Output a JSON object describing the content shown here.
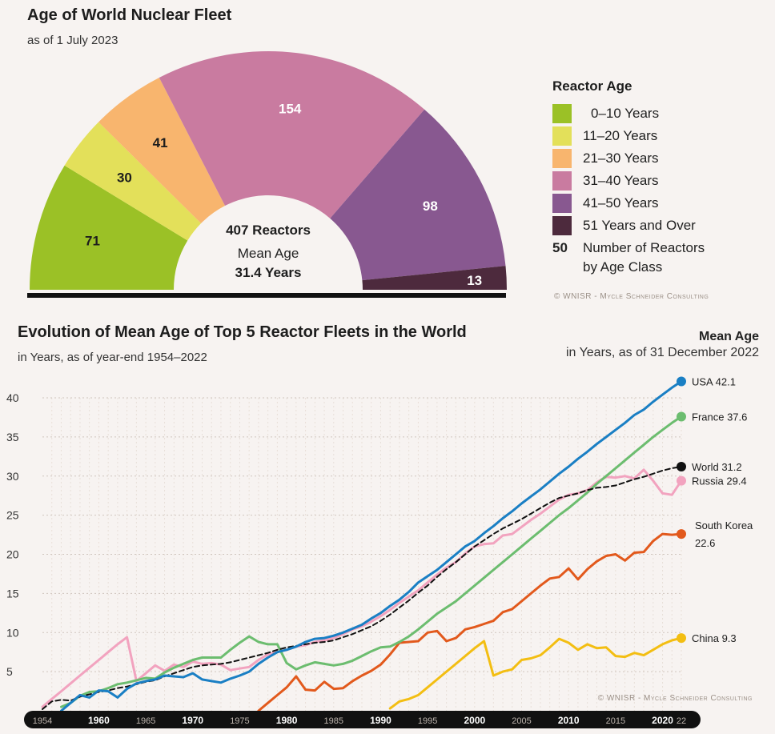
{
  "top": {
    "title": "Age of World Nuclear Fleet",
    "subtitle": "as of 1 July 2023",
    "center_line1": "407 Reactors",
    "center_line2": "Mean Age",
    "center_line3": "31.4 Years",
    "legend_title": "Reactor Age",
    "number_key": "50",
    "number_key_label_1": "Number of Reactors",
    "number_key_label_2": "by Age Class",
    "credit": "© WNISR - Mycle Schneider Consulting"
  },
  "bottom": {
    "title": "Evolution of Mean Age of Top 5 Reactor Fleets in the World",
    "subtitle": "in Years, as of year-end 1954–2022",
    "side_title": "Mean Age",
    "side_subtitle": "in Years, as of 31 December 2022",
    "credit": "© WNISR - Mycle Schneider Consulting"
  },
  "chart_data": [
    {
      "type": "pie",
      "subtype": "semicircle-donut",
      "title": "Age of World Nuclear Fleet",
      "categories": [
        "0–10 Years",
        "11–20 Years",
        "21–30 Years",
        "31–40 Years",
        "41–50 Years",
        "51 Years and Over"
      ],
      "values": [
        71,
        30,
        41,
        154,
        98,
        13
      ],
      "colors": [
        "#9bc126",
        "#e3e05a",
        "#f8b56e",
        "#c97ba0",
        "#885890",
        "#4d2a3d"
      ],
      "label_colors": [
        "#1d1d1d",
        "#1d1d1d",
        "#1d1d1d",
        "#ffffff",
        "#ffffff",
        "#ffffff"
      ],
      "total": 407
    },
    {
      "type": "line",
      "title": "Evolution of Mean Age of Top 5 Reactor Fleets in the World",
      "xlabel": "",
      "ylabel": "",
      "xlim": [
        1954,
        2022
      ],
      "ylim": [
        0,
        40
      ],
      "yticks": [
        5,
        10,
        15,
        20,
        25,
        30,
        35,
        40
      ],
      "xticks": [
        {
          "year": 1954,
          "label": "1954",
          "bold": false
        },
        {
          "year": 1960,
          "label": "1960",
          "bold": true
        },
        {
          "year": 1965,
          "label": "1965",
          "bold": false
        },
        {
          "year": 1970,
          "label": "1970",
          "bold": true
        },
        {
          "year": 1975,
          "label": "1975",
          "bold": false
        },
        {
          "year": 1980,
          "label": "1980",
          "bold": true
        },
        {
          "year": 1985,
          "label": "1985",
          "bold": false
        },
        {
          "year": 1990,
          "label": "1990",
          "bold": true
        },
        {
          "year": 1995,
          "label": "1995",
          "bold": false
        },
        {
          "year": 2000,
          "label": "2000",
          "bold": true
        },
        {
          "year": 2005,
          "label": "2005",
          "bold": false
        },
        {
          "year": 2010,
          "label": "2010",
          "bold": true
        },
        {
          "year": 2015,
          "label": "2015",
          "bold": false
        },
        {
          "year": 2020,
          "label": "2020",
          "bold": true
        },
        {
          "year": 2022,
          "label": "22",
          "bold": false
        }
      ],
      "series": [
        {
          "name": "USA",
          "end_label": "USA 42.1",
          "color": "#1a7fc4",
          "dashed": false,
          "x": [
            1956,
            1957,
            1958,
            1959,
            1960,
            1961,
            1962,
            1963,
            1964,
            1965,
            1966,
            1967,
            1968,
            1969,
            1970,
            1971,
            1972,
            1973,
            1974,
            1975,
            1976,
            1977,
            1978,
            1979,
            1980,
            1981,
            1982,
            1983,
            1984,
            1985,
            1986,
            1987,
            1988,
            1989,
            1990,
            1991,
            1992,
            1993,
            1994,
            1995,
            1996,
            1997,
            1998,
            1999,
            2000,
            2001,
            2002,
            2003,
            2004,
            2005,
            2006,
            2007,
            2008,
            2009,
            2010,
            2011,
            2012,
            2013,
            2014,
            2015,
            2016,
            2017,
            2018,
            2019,
            2020,
            2021,
            2022
          ],
          "y": [
            0,
            1,
            2,
            1.7,
            2.6,
            2.5,
            1.7,
            2.8,
            3.5,
            3.8,
            4,
            4.5,
            4.4,
            4.3,
            4.8,
            4,
            3.8,
            3.6,
            4.1,
            4.5,
            5,
            6,
            6.8,
            7.5,
            7.8,
            8.2,
            8.8,
            9.2,
            9.3,
            9.6,
            10,
            10.5,
            11,
            11.8,
            12.5,
            13.4,
            14.2,
            15.2,
            16.4,
            17.2,
            18,
            19,
            20,
            21,
            21.7,
            22.7,
            23.6,
            24.6,
            25.5,
            26.5,
            27.4,
            28.3,
            29.3,
            30.3,
            31.2,
            32.2,
            33.1,
            34.1,
            35,
            35.9,
            36.8,
            37.8,
            38.5,
            39.5,
            40.4,
            41.3,
            42.1
          ]
        },
        {
          "name": "France",
          "end_label": "France 37.6",
          "color": "#6cbd6f",
          "dashed": false,
          "x": [
            1956,
            1957,
            1958,
            1959,
            1960,
            1961,
            1962,
            1963,
            1964,
            1965,
            1966,
            1967,
            1968,
            1969,
            1970,
            1971,
            1972,
            1973,
            1974,
            1975,
            1976,
            1977,
            1978,
            1979,
            1980,
            1981,
            1982,
            1983,
            1984,
            1985,
            1986,
            1987,
            1988,
            1989,
            1990,
            1991,
            1992,
            1993,
            1994,
            1995,
            1996,
            1997,
            1998,
            1999,
            2000,
            2001,
            2002,
            2003,
            2004,
            2005,
            2006,
            2007,
            2008,
            2009,
            2010,
            2011,
            2012,
            2013,
            2014,
            2015,
            2016,
            2017,
            2018,
            2019,
            2020,
            2021,
            2022
          ],
          "y": [
            0.5,
            1,
            1.9,
            2.4,
            2.5,
            2.9,
            3.4,
            3.6,
            3.9,
            4.2,
            4.1,
            4.9,
            5.5,
            6,
            6.5,
            6.8,
            6.8,
            6.8,
            7.8,
            8.7,
            9.5,
            8.8,
            8.5,
            8.5,
            6.1,
            5.3,
            5.8,
            6.2,
            6,
            5.8,
            6,
            6.4,
            7,
            7.6,
            8.1,
            8.2,
            8.8,
            9.5,
            10.4,
            11.4,
            12.4,
            13.2,
            14,
            15,
            16,
            17,
            18,
            19,
            20,
            21,
            22,
            23,
            24,
            25,
            25.9,
            26.9,
            27.9,
            29,
            30,
            31,
            32,
            33,
            34,
            35,
            35.9,
            36.8,
            37.6
          ]
        },
        {
          "name": "World",
          "end_label": "World 31.2",
          "color": "#111111",
          "dashed": true,
          "x": [
            1954,
            1955,
            1956,
            1957,
            1958,
            1959,
            1960,
            1961,
            1962,
            1963,
            1964,
            1965,
            1966,
            1967,
            1968,
            1969,
            1970,
            1971,
            1972,
            1973,
            1974,
            1975,
            1976,
            1977,
            1978,
            1979,
            1980,
            1981,
            1982,
            1983,
            1984,
            1985,
            1986,
            1987,
            1988,
            1989,
            1990,
            1991,
            1992,
            1993,
            1994,
            1995,
            1996,
            1997,
            1998,
            1999,
            2000,
            2001,
            2002,
            2003,
            2004,
            2005,
            2006,
            2007,
            2008,
            2009,
            2010,
            2011,
            2012,
            2013,
            2014,
            2015,
            2016,
            2017,
            2018,
            2019,
            2020,
            2021,
            2022
          ],
          "y": [
            0.2,
            1.2,
            1.4,
            1.3,
            1.8,
            2.1,
            2.4,
            2.6,
            2.9,
            3.1,
            3.4,
            3.7,
            3.9,
            4.4,
            4.8,
            5.2,
            5.6,
            5.8,
            5.9,
            6,
            6.2,
            6.5,
            6.8,
            7.1,
            7.4,
            7.8,
            8.1,
            8.3,
            8.5,
            8.7,
            8.8,
            9,
            9.4,
            9.8,
            10.3,
            10.8,
            11.5,
            12.3,
            13.2,
            14.1,
            15.1,
            16,
            17.1,
            18.1,
            19,
            20,
            21,
            21.8,
            22.6,
            23.3,
            23.9,
            24.5,
            25.2,
            25.9,
            26.6,
            27.2,
            27.5,
            27.8,
            28.2,
            28.5,
            28.6,
            28.8,
            29.2,
            29.6,
            29.9,
            30.3,
            30.7,
            31,
            31.2
          ]
        },
        {
          "name": "Russia",
          "end_label": "Russia 29.4",
          "color": "#f2a3bf",
          "dashed": false,
          "x": [
            1954,
            1955,
            1956,
            1957,
            1958,
            1959,
            1960,
            1961,
            1962,
            1963,
            1964,
            1965,
            1966,
            1967,
            1968,
            1969,
            1970,
            1971,
            1972,
            1973,
            1974,
            1975,
            1976,
            1977,
            1978,
            1979,
            1980,
            1981,
            1982,
            1983,
            1984,
            1985,
            1986,
            1987,
            1988,
            1989,
            1990,
            1991,
            1992,
            1993,
            1994,
            1995,
            1996,
            1997,
            1998,
            1999,
            2000,
            2001,
            2002,
            2003,
            2004,
            2005,
            2006,
            2007,
            2008,
            2009,
            2010,
            2011,
            2012,
            2013,
            2014,
            2015,
            2016,
            2017,
            2018,
            2019,
            2020,
            2021,
            2022
          ],
          "y": [
            0.5,
            1.5,
            2.5,
            3.5,
            4.5,
            5.5,
            6.5,
            7.5,
            8.5,
            9.4,
            3.8,
            4.8,
            5.8,
            5.1,
            5.9,
            5.6,
            6.3,
            6,
            6.1,
            5.9,
            5.2,
            5.4,
            5.6,
            6.5,
            7.2,
            7.5,
            7.8,
            8.2,
            8.4,
            8.8,
            9,
            9.3,
            9.8,
            10.4,
            10.8,
            11.4,
            12.1,
            12.9,
            13.8,
            14.6,
            15.4,
            16.4,
            17.4,
            18.3,
            19,
            20.1,
            21,
            21.3,
            21.4,
            22.4,
            22.6,
            23.5,
            24.4,
            25.2,
            26.1,
            27,
            27.6,
            27.8,
            28.2,
            29.2,
            29.9,
            29.8,
            30,
            29.7,
            30.8,
            29.4,
            27.8,
            27.6,
            29.4
          ]
        },
        {
          "name": "South Korea",
          "end_label": "South Korea 22.6",
          "color": "#e2591c",
          "dashed": false,
          "x": [
            1977,
            1978,
            1979,
            1980,
            1981,
            1982,
            1983,
            1984,
            1985,
            1986,
            1987,
            1988,
            1989,
            1990,
            1991,
            1992,
            1993,
            1994,
            1995,
            1996,
            1997,
            1998,
            1999,
            2000,
            2001,
            2002,
            2003,
            2004,
            2005,
            2006,
            2007,
            2008,
            2009,
            2010,
            2011,
            2012,
            2013,
            2014,
            2015,
            2016,
            2017,
            2018,
            2019,
            2020,
            2021,
            2022
          ],
          "y": [
            0,
            1,
            2,
            3,
            4.4,
            2.7,
            2.6,
            3.7,
            2.8,
            2.9,
            3.8,
            4.5,
            5.1,
            5.9,
            7.2,
            8.7,
            8.8,
            8.9,
            10,
            10.2,
            8.9,
            9.3,
            10.4,
            10.7,
            11.1,
            11.5,
            12.6,
            13,
            14,
            15,
            16,
            16.9,
            17.1,
            18.2,
            16.8,
            18.1,
            19.1,
            19.8,
            20,
            19.2,
            20.2,
            20.3,
            21.7,
            22.6,
            22.5,
            22.6
          ]
        },
        {
          "name": "China",
          "end_label": "China 9.3",
          "color": "#f3be12",
          "dashed": false,
          "x": [
            1991,
            1992,
            1993,
            1994,
            1995,
            1996,
            1997,
            1998,
            1999,
            2000,
            2001,
            2002,
            2003,
            2004,
            2005,
            2006,
            2007,
            2008,
            2009,
            2010,
            2011,
            2012,
            2013,
            2014,
            2015,
            2016,
            2017,
            2018,
            2019,
            2020,
            2021,
            2022
          ],
          "y": [
            0.3,
            1.2,
            1.5,
            2,
            3,
            4,
            5,
            6,
            7,
            8,
            8.9,
            4.5,
            5,
            5.3,
            6.5,
            6.7,
            7.1,
            8.1,
            9.2,
            8.7,
            7.8,
            8.5,
            8,
            8.1,
            7,
            6.9,
            7.4,
            7.1,
            7.8,
            8.5,
            9,
            9.3
          ]
        }
      ]
    }
  ]
}
